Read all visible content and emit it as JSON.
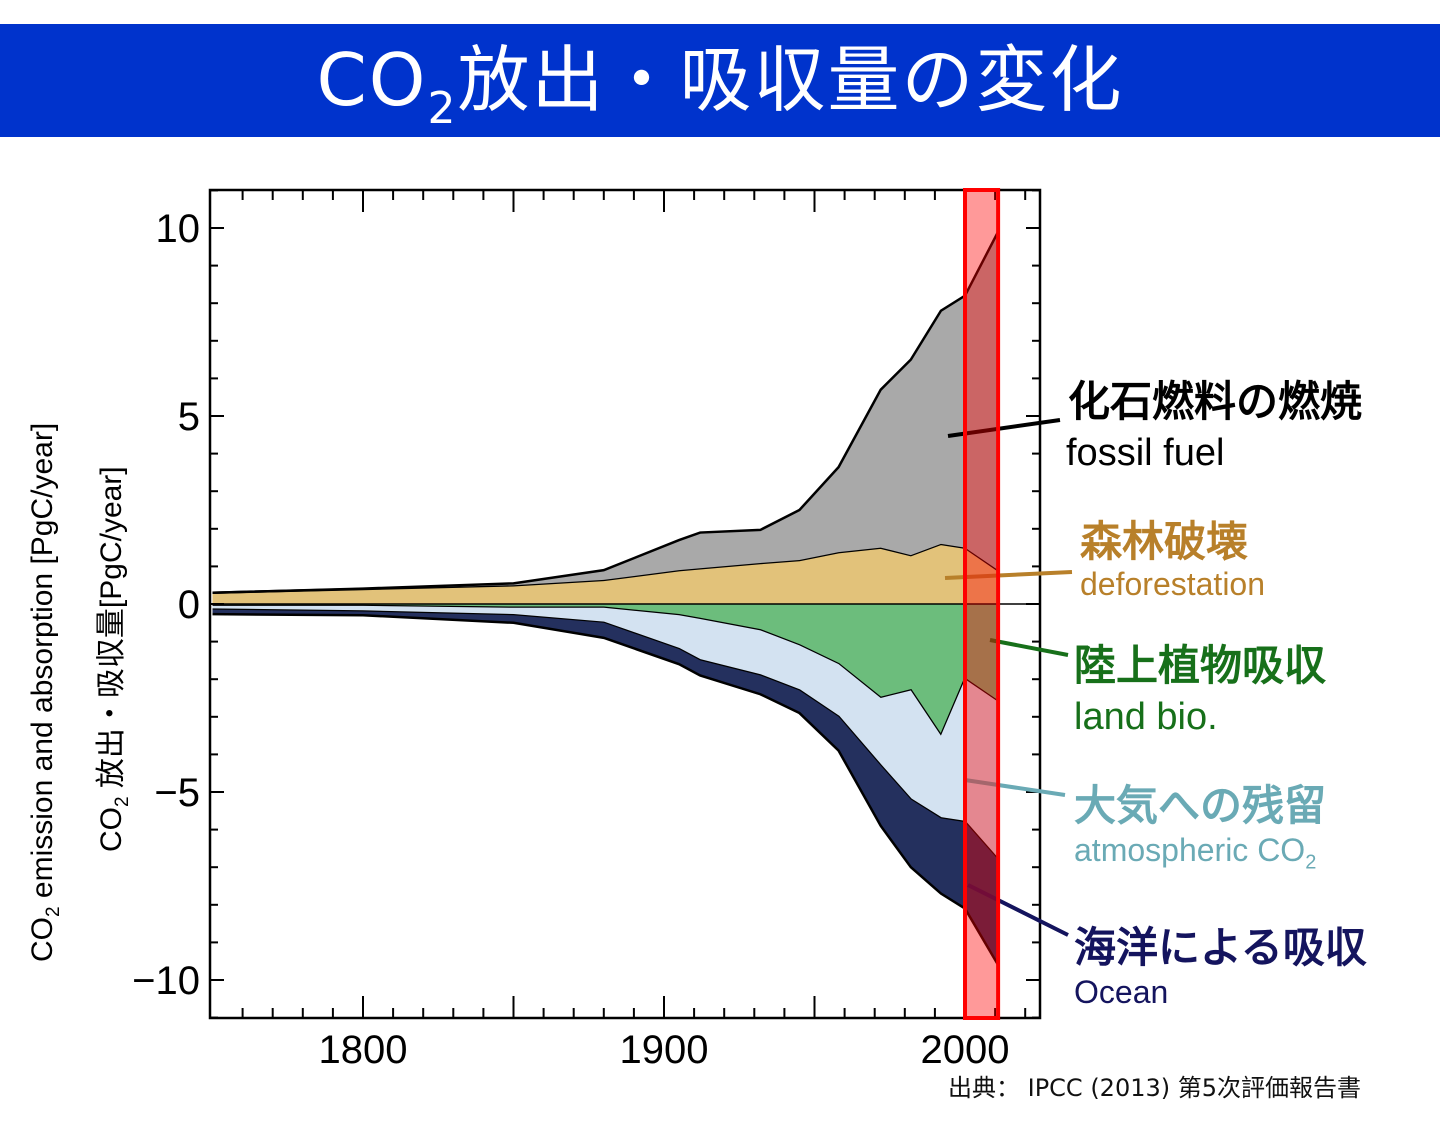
{
  "title": {
    "prefix": "CO",
    "subscript": "2",
    "rest": "放出・吸収量の変化"
  },
  "axis_titles": {
    "english": {
      "prefix": "CO",
      "subscript": "2",
      "rest": " emission and absorption [PgC/year]"
    },
    "japanese": {
      "prefix": "CO",
      "subscript": "2",
      "rest": " 放出・吸収量[PgC/year]"
    }
  },
  "source": "出典： IPCC (2013) 第5次評価報告書",
  "labels": {
    "fossil": {
      "jp": "化石燃料の燃焼",
      "en": "fossil fuel",
      "color": "#000000"
    },
    "deforestation": {
      "jp": "森林破壊",
      "en": "deforestation",
      "color": "#b8802a"
    },
    "land": {
      "jp": "陸上植物吸収",
      "en": "land bio.",
      "color": "#17701a"
    },
    "atmosphere": {
      "jp": "大気への残留",
      "en_prefix": "atmospheric CO",
      "en_sub": "2",
      "color": "#6aaab5"
    },
    "ocean": {
      "jp": "海洋による吸収",
      "en": "Ocean",
      "color": "#14145e"
    }
  },
  "chart_data": {
    "type": "area",
    "stacked": true,
    "xlim": [
      1750,
      2025
    ],
    "ylim": [
      -11,
      11
    ],
    "x_ticks": [
      "1800",
      "1900",
      "2000"
    ],
    "y_ticks": [
      "10",
      "5",
      "0",
      "−5",
      "−10"
    ],
    "grid": false,
    "x": [
      1750,
      1800,
      1850,
      1880,
      1905,
      1912,
      1932,
      1945,
      1958,
      1972,
      1982,
      1992,
      2000,
      2011
    ],
    "series": [
      {
        "name": "deforestation",
        "color": "#e2c27a",
        "values": [
          0.3,
          0.4,
          0.5,
          0.64,
          0.9,
          0.95,
          1.09,
          1.17,
          1.38,
          1.5,
          1.3,
          1.6,
          1.5,
          0.9
        ]
      },
      {
        "name": "fossil fuel",
        "color": "#a9a9a9",
        "values": [
          0.0,
          0.01,
          0.05,
          0.26,
          0.8,
          0.95,
          0.88,
          1.33,
          2.26,
          4.2,
          5.2,
          6.2,
          6.7,
          9.0
        ]
      },
      {
        "name": "land bio.",
        "color": "#6cbd7c",
        "values": [
          -0.05,
          -0.05,
          -0.1,
          -0.1,
          -0.3,
          -0.4,
          -0.7,
          -1.1,
          -1.6,
          -2.5,
          -2.3,
          -3.5,
          -2.0,
          -2.6
        ]
      },
      {
        "name": "atmospheric CO2",
        "color": "#d3e2f1",
        "values": [
          -0.1,
          -0.15,
          -0.2,
          -0.4,
          -0.9,
          -1.1,
          -1.2,
          -1.2,
          -1.4,
          -1.8,
          -2.9,
          -2.2,
          -3.8,
          -4.2
        ]
      },
      {
        "name": "Ocean",
        "color": "#24305e",
        "values": [
          -0.12,
          -0.1,
          -0.2,
          -0.4,
          -0.4,
          -0.4,
          -0.5,
          -0.6,
          -0.9,
          -1.6,
          -1.8,
          -2.0,
          -2.3,
          -2.8
        ]
      }
    ],
    "highlight": {
      "from": 2000,
      "to": 2011,
      "color": "#ff0000"
    }
  }
}
